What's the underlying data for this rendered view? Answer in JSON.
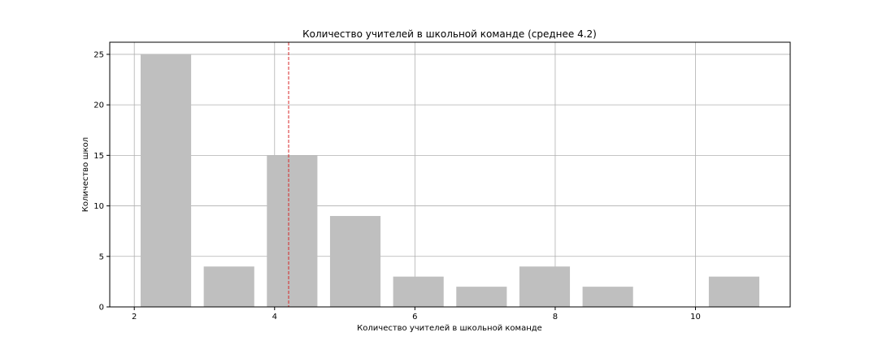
{
  "chart_data": {
    "type": "bar",
    "title": "Количество учителей в школьной команде (среднее 4.2)",
    "xlabel": "Количество учителей в школьной команде",
    "ylabel": "Количество школ",
    "x": [
      2.45,
      3.35,
      4.25,
      5.15,
      6.05,
      6.95,
      7.85,
      8.75,
      9.65,
      10.55
    ],
    "values": [
      25,
      4,
      15,
      9,
      3,
      2,
      4,
      2,
      0,
      3
    ],
    "bar_width": 0.72,
    "xlim": [
      1.65,
      11.35
    ],
    "ylim": [
      0,
      26.2
    ],
    "x_ticks": [
      2,
      4,
      6,
      8,
      10
    ],
    "y_ticks": [
      0,
      5,
      10,
      15,
      20,
      25
    ],
    "mean_line": {
      "value": 4.2,
      "color": "#d62728",
      "style": "dashed"
    },
    "bar_color": "#bfbfbf",
    "grid": true,
    "legend": "none"
  }
}
